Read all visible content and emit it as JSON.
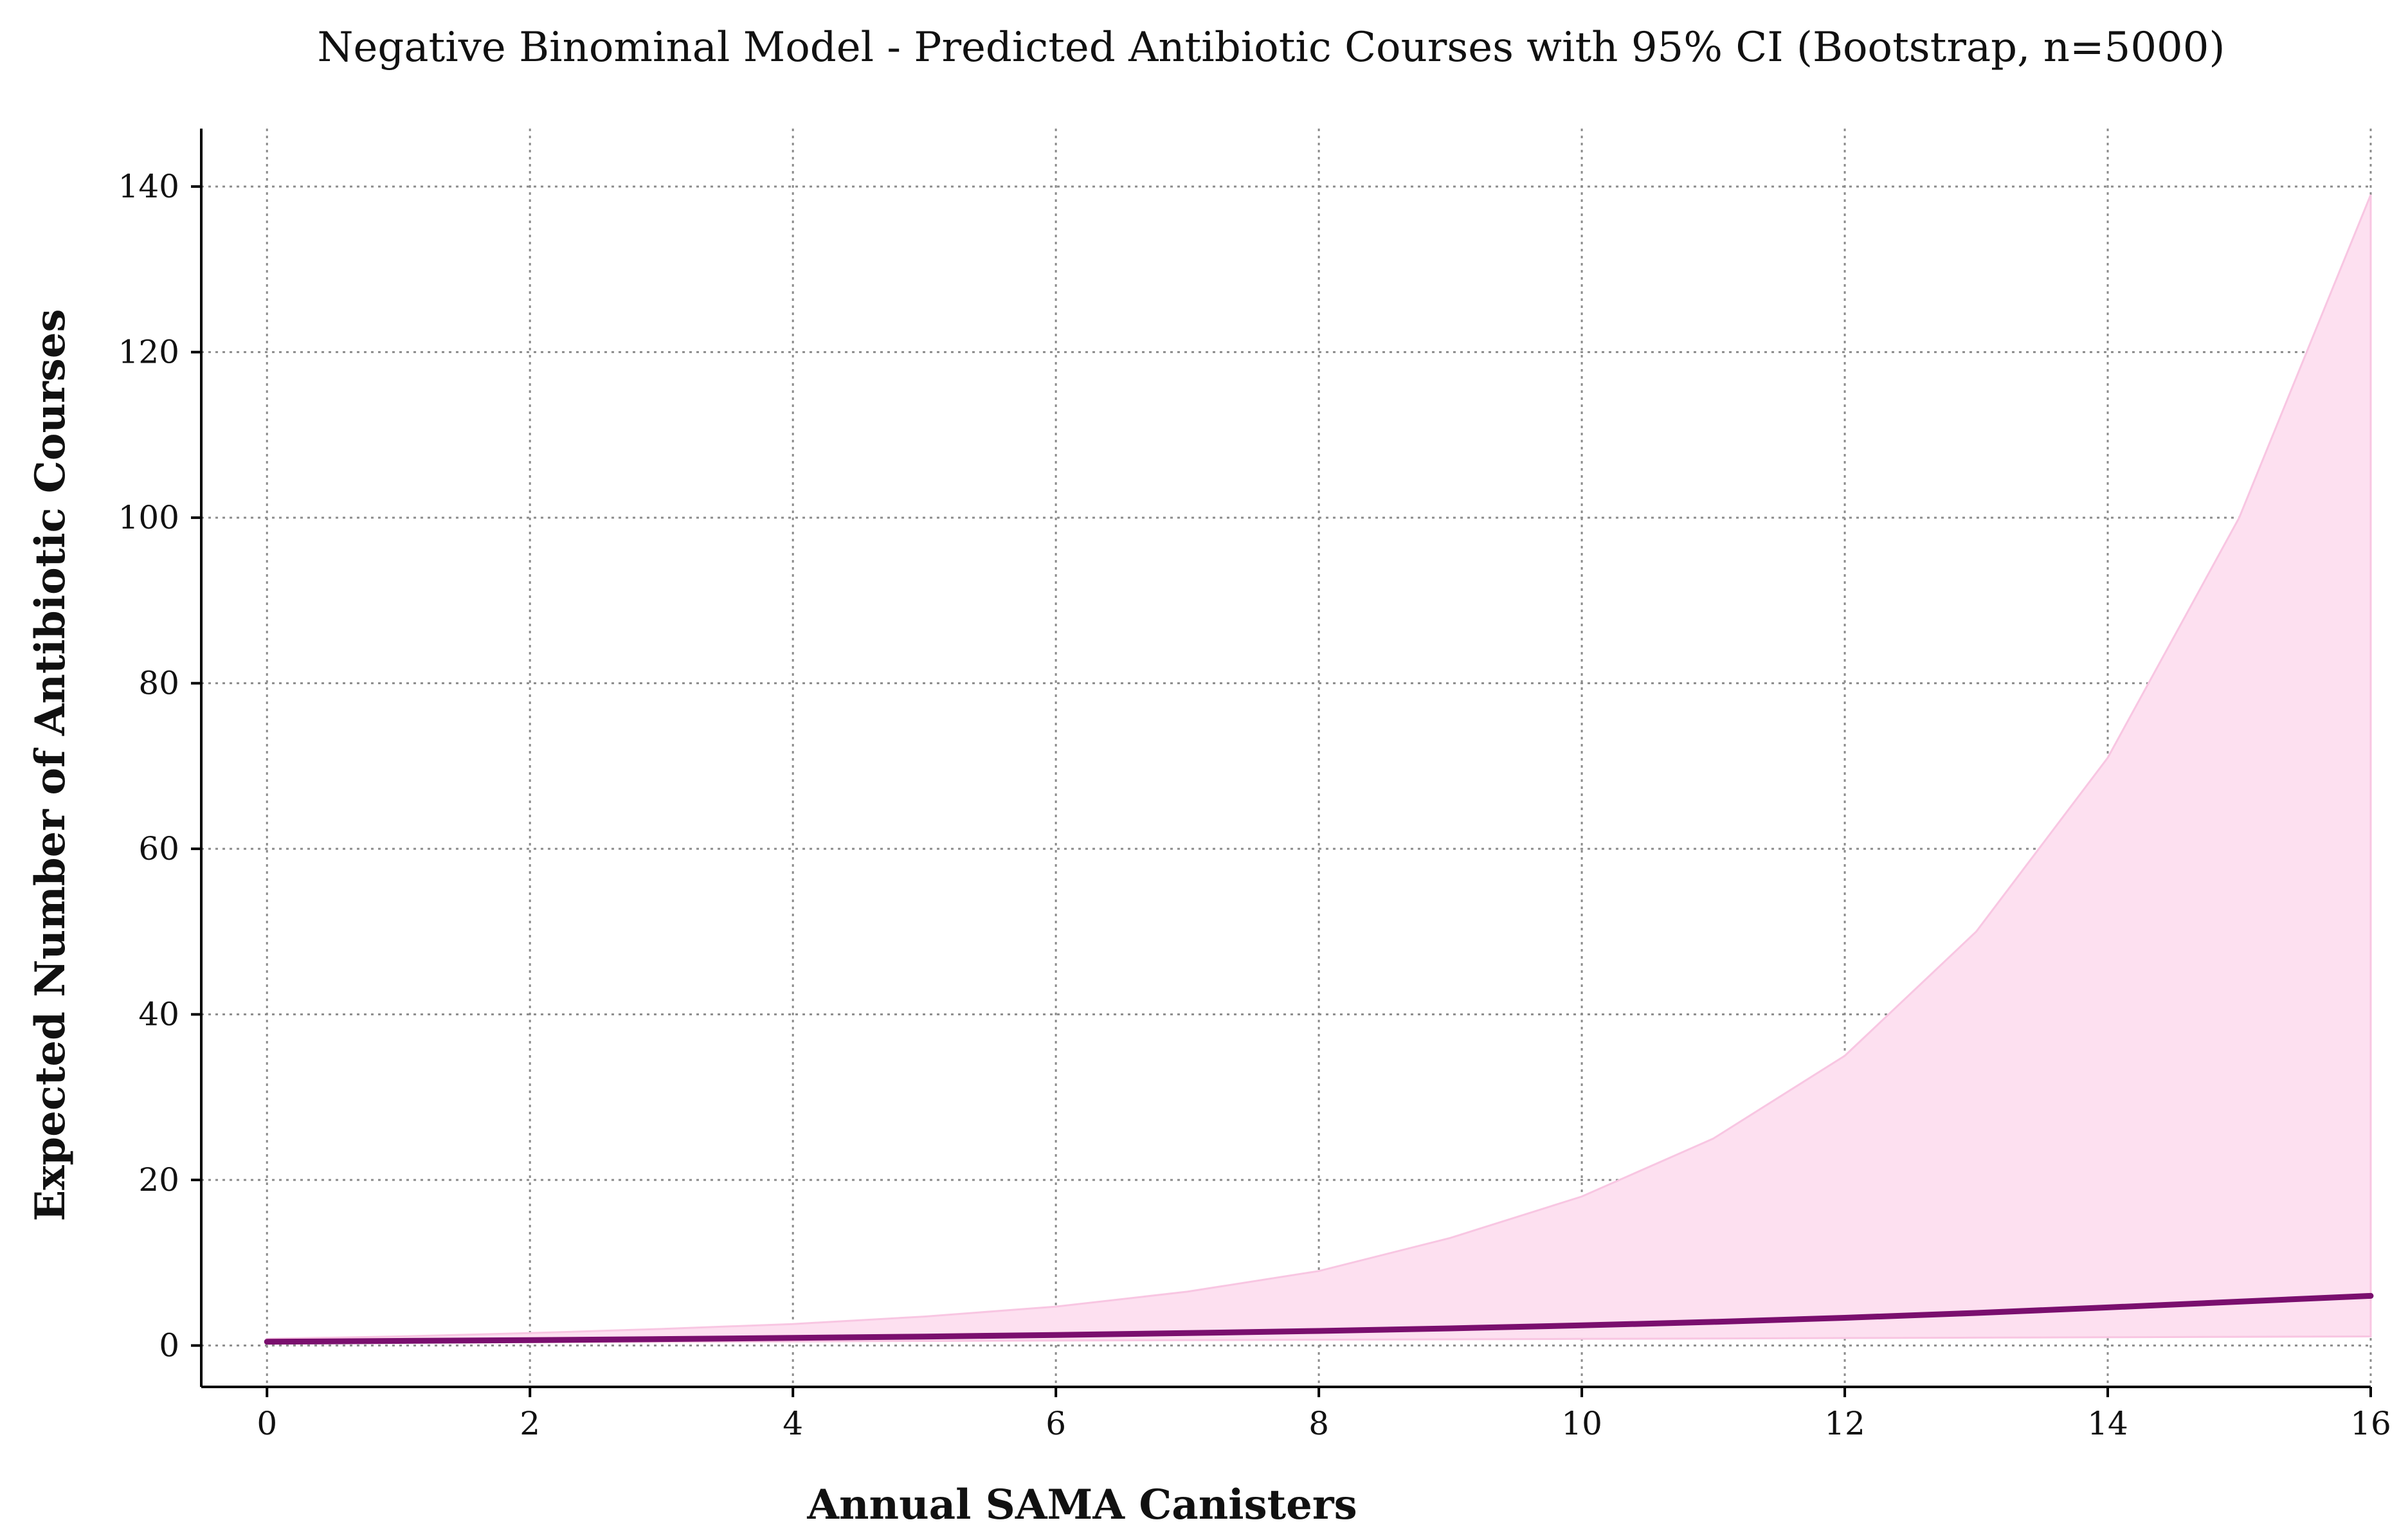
{
  "chart_data": {
    "type": "line",
    "title": "Negative Binominal Model - Predicted Antibiotic Courses with 95% CI (Bootstrap, n=5000)",
    "xlabel": "Annual SAMA Canisters",
    "ylabel": "Expected Number of Antibiotic Courses",
    "xlim": [
      -0.5,
      16
    ],
    "ylim": [
      -5,
      147
    ],
    "x_ticks": [
      0,
      2,
      4,
      6,
      8,
      10,
      12,
      14,
      16
    ],
    "y_ticks": [
      0,
      20,
      40,
      60,
      80,
      100,
      120,
      140
    ],
    "grid": true,
    "x": [
      0,
      1,
      2,
      3,
      4,
      5,
      6,
      7,
      8,
      9,
      10,
      11,
      12,
      13,
      14,
      15,
      16
    ],
    "series": [
      {
        "type": "line",
        "values": [
          0.45,
          0.55,
          0.65,
          0.78,
          0.92,
          1.08,
          1.27,
          1.5,
          1.76,
          2.07,
          2.43,
          2.85,
          3.35,
          3.93,
          4.6,
          5.3,
          6.0
        ]
      },
      {
        "type": "band",
        "lower": [
          0.3,
          0.35,
          0.4,
          0.45,
          0.5,
          0.55,
          0.6,
          0.65,
          0.7,
          0.75,
          0.8,
          0.85,
          0.9,
          0.95,
          1.0,
          1.05,
          1.1
        ],
        "upper": [
          0.8,
          1.1,
          1.5,
          2.0,
          2.6,
          3.5,
          4.7,
          6.5,
          9.0,
          13.0,
          18.0,
          25.0,
          35.0,
          50.0,
          71.0,
          100.0,
          139.0
        ]
      }
    ],
    "colors": {
      "line": "#7a0f6e",
      "band_fill": "#fde0f0",
      "band_edge": "#f8c6e2"
    }
  }
}
